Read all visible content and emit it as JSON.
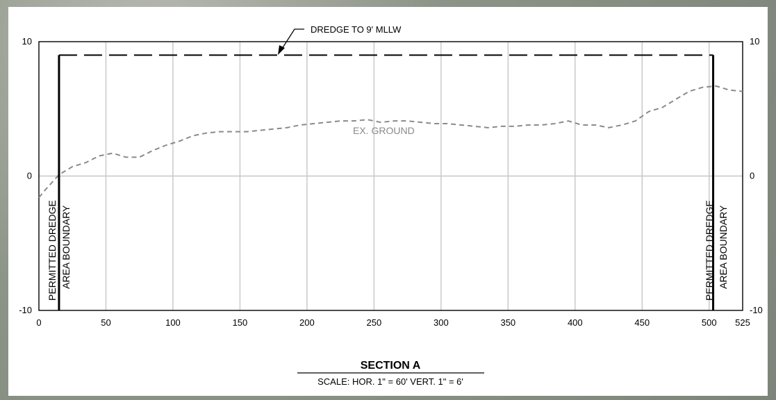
{
  "chart_data": {
    "type": "line",
    "x_ticks": [
      0,
      50,
      100,
      150,
      200,
      250,
      300,
      350,
      400,
      450,
      500,
      525
    ],
    "y_ticks": [
      10,
      0,
      -10
    ],
    "xlim": [
      0,
      525
    ],
    "ylim": [
      -10,
      10
    ],
    "grid": true,
    "series": [
      {
        "name": "EX. GROUND",
        "style": "dashed",
        "color": "#8a8a8a",
        "x": [
          0,
          5,
          15,
          25,
          35,
          45,
          55,
          65,
          75,
          85,
          95,
          105,
          115,
          125,
          135,
          145,
          155,
          165,
          175,
          185,
          195,
          205,
          215,
          225,
          235,
          245,
          255,
          265,
          275,
          285,
          295,
          305,
          315,
          325,
          335,
          345,
          355,
          365,
          375,
          385,
          395,
          405,
          415,
          425,
          435,
          445,
          455,
          465,
          475,
          485,
          495,
          505,
          515,
          525
        ],
        "y": [
          -1.6,
          -1.0,
          0.1,
          0.7,
          1.0,
          1.5,
          1.7,
          1.4,
          1.4,
          1.9,
          2.3,
          2.6,
          3.0,
          3.2,
          3.3,
          3.3,
          3.3,
          3.4,
          3.5,
          3.6,
          3.8,
          3.9,
          4.0,
          4.1,
          4.1,
          4.2,
          4.0,
          4.1,
          4.1,
          4.0,
          3.9,
          3.9,
          3.8,
          3.7,
          3.6,
          3.7,
          3.7,
          3.8,
          3.8,
          3.9,
          4.1,
          3.8,
          3.8,
          3.6,
          3.8,
          4.1,
          4.8,
          5.1,
          5.7,
          6.3,
          6.6,
          6.7,
          6.4,
          6.3
        ]
      }
    ],
    "dredge_depth": 9,
    "boundaries": [
      15,
      503
    ]
  },
  "labels": {
    "dredge_label": "DREDGE TO 9' MLLW",
    "ground_label": "EX. GROUND",
    "boundary_line1": "PERMITTED DREDGE",
    "boundary_line2": "AREA BOUNDARY",
    "section_title": "SECTION A",
    "scale_text": "SCALE: HOR. 1\" = 60' VERT. 1\" = 6'"
  }
}
